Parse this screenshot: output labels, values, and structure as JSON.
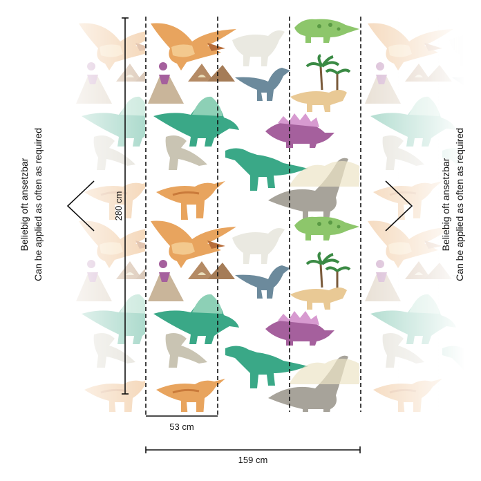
{
  "dimensions": {
    "height_label": "280 cm",
    "strip_width_label": "53 cm",
    "total_width_label": "159 cm"
  },
  "repeat_note": {
    "german": "Beliebig oft ansetzbar",
    "english": "Can be applied as often as required"
  },
  "wallpaper": {
    "strips": 3,
    "motifs": [
      "pterodactyl",
      "volcano",
      "mountains",
      "spinosaurus",
      "t-rex-skeleton",
      "parasaurolophus",
      "triceratops",
      "palm-trees",
      "dino-skeleton",
      "velociraptor",
      "stegosaurus",
      "t-rex",
      "brachiosaurus",
      "stegosaurus-skeleton"
    ],
    "colors": {
      "green": "#8dc66b",
      "teal": "#3aa887",
      "orange": "#e8a45e",
      "purple": "#a5609d",
      "beige": "#e9dcb8",
      "grey": "#8a8f96",
      "brown": "#b48a64"
    }
  }
}
